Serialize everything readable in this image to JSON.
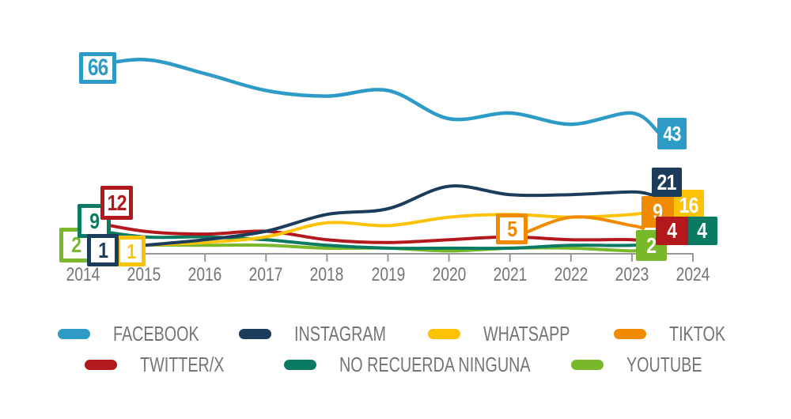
{
  "chart_data": {
    "type": "line",
    "title": "",
    "xlabel": "",
    "ylabel": "",
    "x_years": [
      2014,
      2015,
      2016,
      2017,
      2018,
      2019,
      2020,
      2021,
      2022,
      2023,
      2024
    ],
    "x_tick_labels": [
      "2014",
      "2015",
      "2016",
      "2017",
      "2018",
      "2019",
      "2020",
      "2021",
      "2022",
      "2023",
      "2024"
    ],
    "ylim": [
      0,
      75
    ],
    "grid": false,
    "legend_position": "bottom",
    "series": [
      {
        "id": "facebook",
        "label": "FACEBOOK",
        "color": "#2D9BC6",
        "values": [
          66,
          69,
          64,
          58,
          56,
          58,
          48,
          50,
          46,
          50,
          43
        ]
      },
      {
        "id": "instagram",
        "label": "INSTAGRAM",
        "color": "#1C3C5B",
        "values": [
          1,
          3,
          5,
          8,
          14,
          16,
          24,
          21,
          21,
          22,
          21
        ]
      },
      {
        "id": "whatsapp",
        "label": "WHATSAPP",
        "color": "#FCC306",
        "values": [
          1,
          3,
          4,
          6,
          11,
          10,
          13,
          14,
          13,
          14,
          16
        ]
      },
      {
        "id": "tiktok",
        "label": "TIKTOK",
        "color": "#F08A00",
        "values": [
          null,
          null,
          null,
          null,
          null,
          null,
          null,
          5,
          13,
          10,
          9
        ]
      },
      {
        "id": "twitter",
        "label": "TWITTER/X",
        "color": "#B2181C",
        "values": [
          12,
          8,
          7,
          8,
          5,
          4,
          5,
          6,
          5,
          5,
          4
        ]
      },
      {
        "id": "norecuerda",
        "label": "NO RECUERDA NINGUNA",
        "color": "#0A7B62",
        "values": [
          9,
          6,
          6,
          5,
          3,
          2,
          2,
          2,
          3,
          3,
          4
        ]
      },
      {
        "id": "youtube",
        "label": "YOUTUBE",
        "color": "#79B82B",
        "values": [
          2,
          3,
          3,
          3,
          2,
          2,
          1,
          2,
          2,
          1,
          2
        ]
      }
    ],
    "callouts": [
      {
        "id": "facebook-2014",
        "series": "facebook",
        "year": 2014,
        "value": 66,
        "style": "outline"
      },
      {
        "id": "twitter-2014",
        "series": "twitter",
        "year": 2014,
        "value": 12,
        "style": "outline"
      },
      {
        "id": "norecuerda-2014",
        "series": "norecuerda",
        "year": 2014,
        "value": 9,
        "style": "outline"
      },
      {
        "id": "youtube-2014",
        "series": "youtube",
        "year": 2014,
        "value": 2,
        "style": "outline"
      },
      {
        "id": "instagram-2014",
        "series": "instagram",
        "year": 2014,
        "value": 1,
        "style": "outline"
      },
      {
        "id": "whatsapp-2014",
        "series": "whatsapp",
        "year": 2014,
        "value": 1,
        "style": "outline"
      },
      {
        "id": "tiktok-2021",
        "series": "tiktok",
        "year": 2021,
        "value": 5,
        "style": "outline"
      },
      {
        "id": "facebook-2024",
        "series": "facebook",
        "year": 2024,
        "value": 43,
        "style": "filled"
      },
      {
        "id": "instagram-2024",
        "series": "instagram",
        "year": 2024,
        "value": 21,
        "style": "filled"
      },
      {
        "id": "whatsapp-2024",
        "series": "whatsapp",
        "year": 2024,
        "value": 16,
        "style": "filled"
      },
      {
        "id": "tiktok-2024",
        "series": "tiktok",
        "year": 2024,
        "value": 9,
        "style": "filled"
      },
      {
        "id": "twitter-2024",
        "series": "twitter",
        "year": 2024,
        "value": 4,
        "style": "filled"
      },
      {
        "id": "norecuerda-2024",
        "series": "norecuerda",
        "year": 2024,
        "value": 4,
        "style": "filled"
      },
      {
        "id": "youtube-2024",
        "series": "youtube",
        "year": 2024,
        "value": 2,
        "style": "filled"
      }
    ]
  },
  "legend": {
    "rows": [
      [
        "facebook",
        "instagram",
        "whatsapp",
        "tiktok"
      ],
      [
        "twitter",
        "norecuerda",
        "youtube"
      ]
    ]
  },
  "axis": {
    "line_color": "#97989B",
    "label_color": "#74757A"
  }
}
